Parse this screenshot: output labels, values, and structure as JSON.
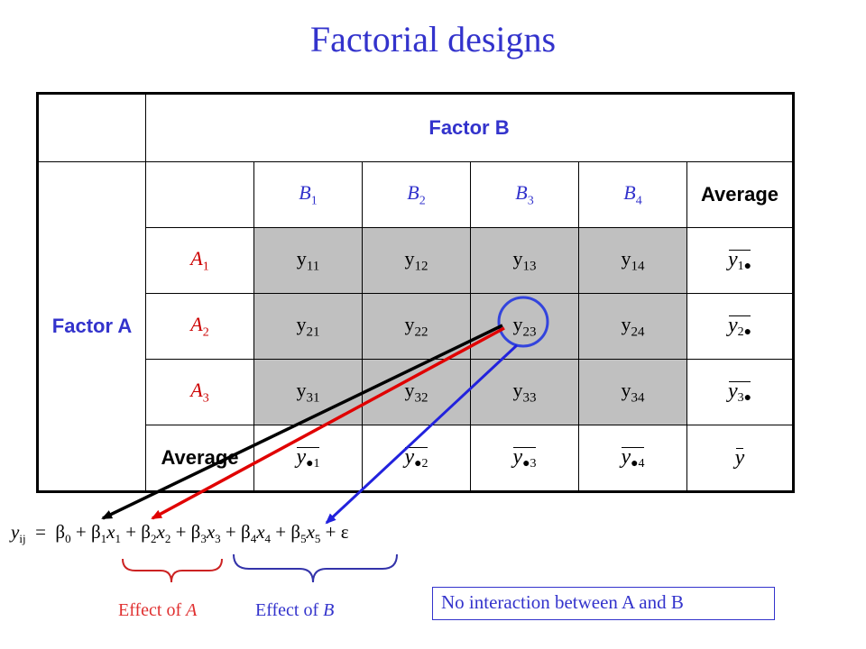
{
  "title": "Factorial designs",
  "table": {
    "factor_b_label": "Factor B",
    "factor_a_label": "Factor A",
    "average_label": "Average",
    "col_levels": [
      {
        "l": "B",
        "s": "1"
      },
      {
        "l": "B",
        "s": "2"
      },
      {
        "l": "B",
        "s": "3"
      },
      {
        "l": "B",
        "s": "4"
      }
    ],
    "row_levels": [
      {
        "l": "A",
        "s": "1"
      },
      {
        "l": "A",
        "s": "2"
      },
      {
        "l": "A",
        "s": "3"
      }
    ],
    "cells": [
      [
        {
          "l": "y",
          "s": "11"
        },
        {
          "l": "y",
          "s": "12"
        },
        {
          "l": "y",
          "s": "13"
        },
        {
          "l": "y",
          "s": "14"
        }
      ],
      [
        {
          "l": "y",
          "s": "21"
        },
        {
          "l": "y",
          "s": "22"
        },
        {
          "l": "y",
          "s": "23"
        },
        {
          "l": "y",
          "s": "24"
        }
      ],
      [
        {
          "l": "y",
          "s": "31"
        },
        {
          "l": "y",
          "s": "32"
        },
        {
          "l": "y",
          "s": "33"
        },
        {
          "l": "y",
          "s": "34"
        }
      ]
    ],
    "row_averages": [
      {
        "l": "y",
        "s": "1●"
      },
      {
        "l": "y",
        "s": "2●"
      },
      {
        "l": "y",
        "s": "3●"
      }
    ],
    "col_averages": [
      {
        "l": "y",
        "s": "●1"
      },
      {
        "l": "y",
        "s": "●2"
      },
      {
        "l": "y",
        "s": "●3"
      },
      {
        "l": "y",
        "s": "●4"
      }
    ],
    "grand_average": {
      "l": "y",
      "s": ""
    }
  },
  "equation": {
    "lhs": "y",
    "lhs_sub": "ij",
    "equals": "=",
    "terms": [
      {
        "coef": "β",
        "coef_sub": "0",
        "var": "",
        "var_sub": ""
      },
      {
        "coef": "β",
        "coef_sub": "1",
        "var": "x",
        "var_sub": "1"
      },
      {
        "coef": "β",
        "coef_sub": "2",
        "var": "x",
        "var_sub": "2"
      },
      {
        "coef": "β",
        "coef_sub": "3",
        "var": "x",
        "var_sub": "3"
      },
      {
        "coef": "β",
        "coef_sub": "4",
        "var": "x",
        "var_sub": "4"
      },
      {
        "coef": "β",
        "coef_sub": "5",
        "var": "x",
        "var_sub": "5"
      }
    ],
    "error": "ε"
  },
  "labels": {
    "effect_a": "Effect of",
    "effect_a_var": "A",
    "effect_b": "Effect of",
    "effect_b_var": "B",
    "note": "No interaction between A and B"
  },
  "colors": {
    "title": "#3333cc",
    "header": "#3333cc",
    "shaded_cell": "#c0c0c0",
    "arrow_black": "#000000",
    "arrow_red": "#e00000",
    "arrow_blue": "#2222dd",
    "brace_a": "#cc2222",
    "brace_b": "#3333aa"
  }
}
